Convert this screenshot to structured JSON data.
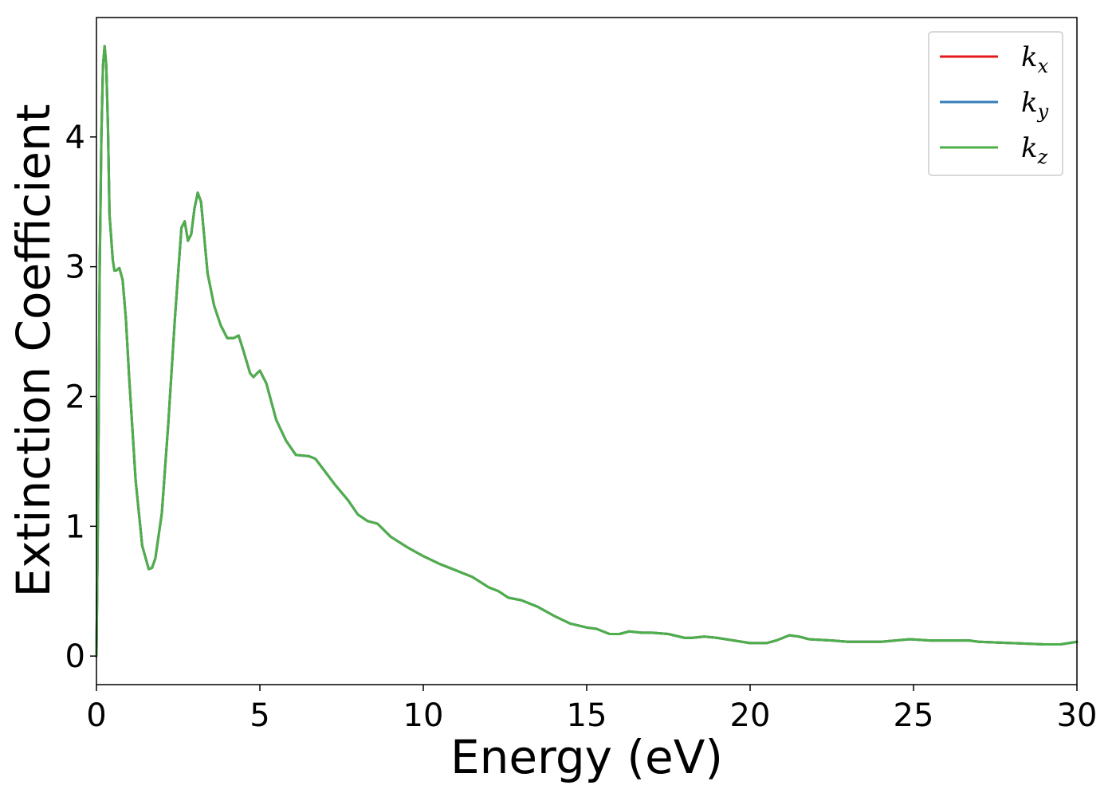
{
  "chart_data": {
    "type": "line",
    "title": "",
    "xlabel": "Energy (eV)",
    "ylabel": "Extinction Coefficient",
    "xlim": [
      0,
      30
    ],
    "ylim": [
      -0.22,
      4.92
    ],
    "xticks": [
      0,
      5,
      10,
      15,
      20,
      25,
      30
    ],
    "yticks": [
      0,
      1,
      2,
      3,
      4
    ],
    "grid": false,
    "legend_position": "top-right",
    "x": [
      0.0,
      0.05,
      0.1,
      0.15,
      0.2,
      0.25,
      0.3,
      0.35,
      0.4,
      0.5,
      0.55,
      0.6,
      0.7,
      0.8,
      0.9,
      1.0,
      1.2,
      1.4,
      1.6,
      1.7,
      1.8,
      2.0,
      2.2,
      2.4,
      2.6,
      2.7,
      2.8,
      2.9,
      3.0,
      3.1,
      3.2,
      3.4,
      3.6,
      3.8,
      4.0,
      4.2,
      4.35,
      4.5,
      4.7,
      4.8,
      5.0,
      5.2,
      5.5,
      5.8,
      6.1,
      6.5,
      6.7,
      7.0,
      7.3,
      7.7,
      8.0,
      8.3,
      8.6,
      9.0,
      9.5,
      10.0,
      10.5,
      10.8,
      11.0,
      11.5,
      12.0,
      12.3,
      12.6,
      13.0,
      13.5,
      14.0,
      14.5,
      15.0,
      15.3,
      15.7,
      16.0,
      16.3,
      16.7,
      17.0,
      17.5,
      18.0,
      18.2,
      18.6,
      19.0,
      19.5,
      20.0,
      20.5,
      20.8,
      21.2,
      21.5,
      21.8,
      22.5,
      23.0,
      24.0,
      24.9,
      25.5,
      26.0,
      26.7,
      27.0,
      28.0,
      29.0,
      29.5,
      30.0
    ],
    "series": [
      {
        "name": "k_x",
        "color": "#e41a1c",
        "values": [
          0.0,
          1.2,
          3.0,
          4.0,
          4.55,
          4.7,
          4.55,
          4.1,
          3.4,
          3.05,
          2.97,
          2.97,
          2.99,
          2.9,
          2.6,
          2.15,
          1.35,
          0.85,
          0.67,
          0.68,
          0.75,
          1.1,
          1.8,
          2.6,
          3.3,
          3.35,
          3.2,
          3.25,
          3.45,
          3.57,
          3.5,
          2.95,
          2.7,
          2.55,
          2.45,
          2.45,
          2.47,
          2.35,
          2.18,
          2.15,
          2.2,
          2.1,
          1.82,
          1.66,
          1.55,
          1.54,
          1.52,
          1.42,
          1.32,
          1.2,
          1.09,
          1.04,
          1.02,
          0.92,
          0.84,
          0.77,
          0.71,
          0.68,
          0.66,
          0.61,
          0.53,
          0.5,
          0.45,
          0.43,
          0.38,
          0.31,
          0.25,
          0.22,
          0.21,
          0.17,
          0.17,
          0.19,
          0.18,
          0.18,
          0.17,
          0.14,
          0.14,
          0.15,
          0.14,
          0.12,
          0.1,
          0.1,
          0.12,
          0.16,
          0.15,
          0.13,
          0.12,
          0.11,
          0.11,
          0.13,
          0.12,
          0.12,
          0.12,
          0.11,
          0.1,
          0.09,
          0.09,
          0.11
        ]
      },
      {
        "name": "k_y",
        "color": "#377eb8",
        "values": [
          0.0,
          1.2,
          3.0,
          4.0,
          4.55,
          4.7,
          4.55,
          4.1,
          3.4,
          3.05,
          2.97,
          2.97,
          2.99,
          2.9,
          2.6,
          2.15,
          1.35,
          0.85,
          0.67,
          0.68,
          0.75,
          1.1,
          1.8,
          2.6,
          3.3,
          3.35,
          3.2,
          3.25,
          3.45,
          3.57,
          3.5,
          2.95,
          2.7,
          2.55,
          2.45,
          2.45,
          2.47,
          2.35,
          2.18,
          2.15,
          2.2,
          2.1,
          1.82,
          1.66,
          1.55,
          1.54,
          1.52,
          1.42,
          1.32,
          1.2,
          1.09,
          1.04,
          1.02,
          0.92,
          0.84,
          0.77,
          0.71,
          0.68,
          0.66,
          0.61,
          0.53,
          0.5,
          0.45,
          0.43,
          0.38,
          0.31,
          0.25,
          0.22,
          0.21,
          0.17,
          0.17,
          0.19,
          0.18,
          0.18,
          0.17,
          0.14,
          0.14,
          0.15,
          0.14,
          0.12,
          0.1,
          0.1,
          0.12,
          0.16,
          0.15,
          0.13,
          0.12,
          0.11,
          0.11,
          0.13,
          0.12,
          0.12,
          0.12,
          0.11,
          0.1,
          0.09,
          0.09,
          0.11
        ]
      },
      {
        "name": "k_z",
        "color": "#4daf4a",
        "values": [
          0.0,
          1.2,
          3.0,
          4.0,
          4.55,
          4.7,
          4.55,
          4.1,
          3.4,
          3.05,
          2.97,
          2.97,
          2.99,
          2.9,
          2.6,
          2.15,
          1.35,
          0.85,
          0.67,
          0.68,
          0.75,
          1.1,
          1.8,
          2.6,
          3.3,
          3.35,
          3.2,
          3.25,
          3.45,
          3.57,
          3.5,
          2.95,
          2.7,
          2.55,
          2.45,
          2.45,
          2.47,
          2.35,
          2.18,
          2.15,
          2.2,
          2.1,
          1.82,
          1.66,
          1.55,
          1.54,
          1.52,
          1.42,
          1.32,
          1.2,
          1.09,
          1.04,
          1.02,
          0.92,
          0.84,
          0.77,
          0.71,
          0.68,
          0.66,
          0.61,
          0.53,
          0.5,
          0.45,
          0.43,
          0.38,
          0.31,
          0.25,
          0.22,
          0.21,
          0.17,
          0.17,
          0.19,
          0.18,
          0.18,
          0.17,
          0.14,
          0.14,
          0.15,
          0.14,
          0.12,
          0.1,
          0.1,
          0.12,
          0.16,
          0.15,
          0.13,
          0.12,
          0.11,
          0.11,
          0.13,
          0.12,
          0.12,
          0.12,
          0.11,
          0.1,
          0.09,
          0.09,
          0.11
        ]
      }
    ],
    "legend": [
      {
        "base": "k",
        "sub": "x"
      },
      {
        "base": "k",
        "sub": "y"
      },
      {
        "base": "k",
        "sub": "z"
      }
    ]
  }
}
